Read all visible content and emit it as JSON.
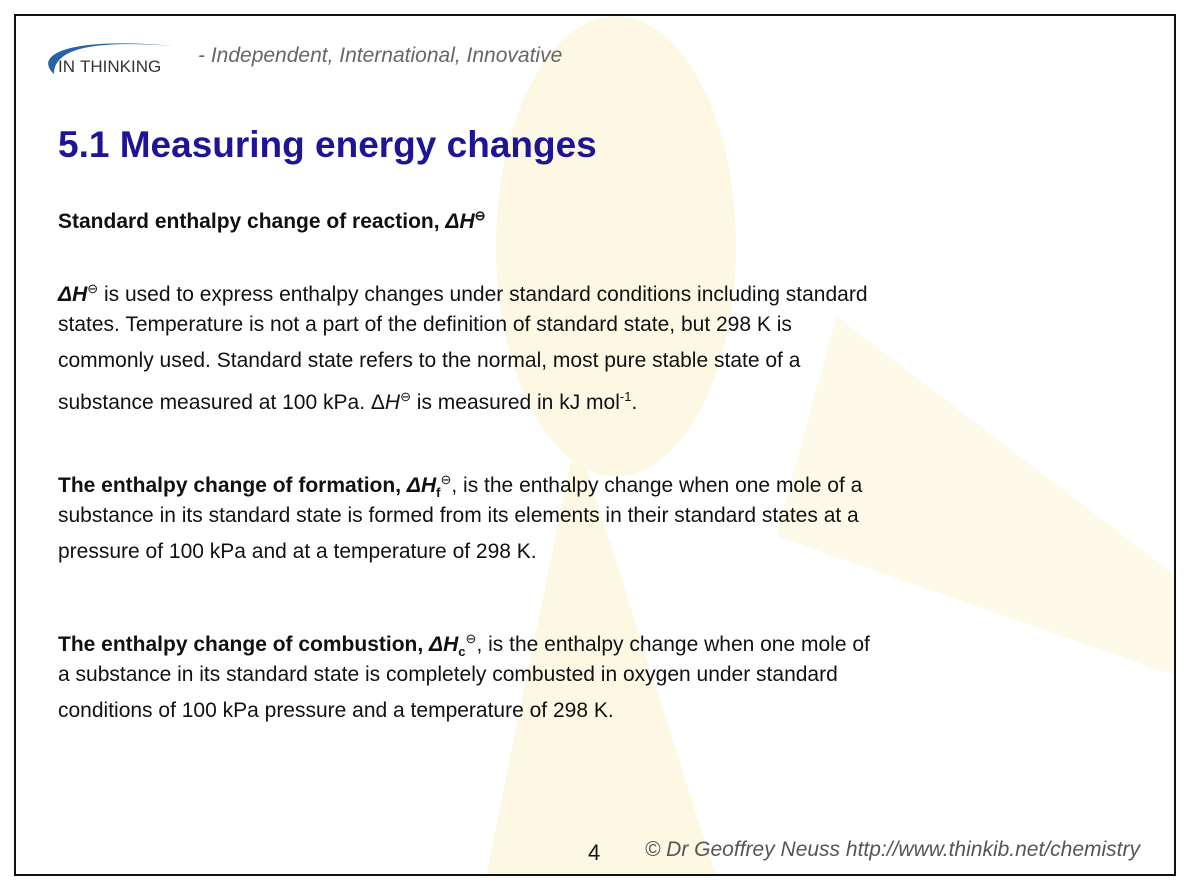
{
  "header": {
    "logo_text": "INTHINKING",
    "tagline": "- Independent, International, Innovative"
  },
  "title": "5.1 Measuring energy changes",
  "section1": {
    "heading": "Standard enthalpy change of reaction, ",
    "heading_sym": "ΔH",
    "std": "⊖",
    "l1_sym": "ΔH",
    "l1": " is used to express enthalpy changes under standard conditions including standard",
    "l2": "states. Temperature is not a part of the definition of standard state, but 298 K is",
    "l3": "commonly used. Standard state refers to the normal, most pure stable state of a",
    "l4a": "substance measured at 100 kPa.  Δ",
    "l4H": "H",
    "l4b": " is measured in kJ mol",
    "l4exp": "-1",
    "l4c": "."
  },
  "section2": {
    "bold": "The enthalpy change of formation, ",
    "sym": "ΔH",
    "sub": "f",
    "rest1": ", is the enthalpy change when one mole of a",
    "l2": "substance in its standard state is formed from its elements in their standard states at a",
    "l3": "pressure of 100 kPa and at a temperature of 298 K."
  },
  "section3": {
    "bold": "The enthalpy change of combustion, ",
    "sym": "ΔH",
    "sub": "c",
    "rest1": ", is the enthalpy change when one mole of",
    "l2": "a substance in its standard state is completely combusted in oxygen under standard",
    "l3": "conditions of 100 kPa pressure and a temperature of 298 K."
  },
  "footer": {
    "page": "4",
    "credit": "© Dr Geoffrey Neuss http://www.thinkib.net/chemistry"
  }
}
